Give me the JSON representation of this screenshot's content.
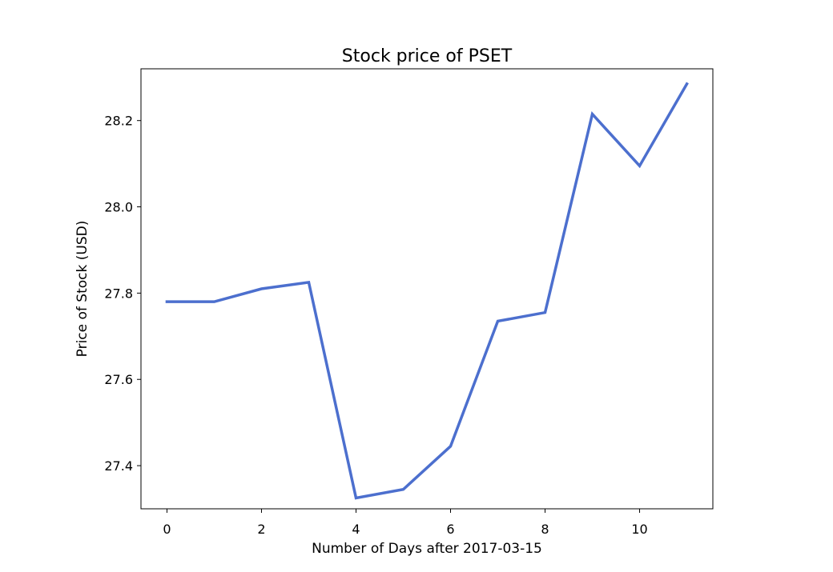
{
  "chart_data": {
    "type": "line",
    "title": "Stock price of PSET",
    "xlabel": "Number of Days after 2017-03-15",
    "ylabel": "Price of Stock (USD)",
    "xlim": [
      -0.55,
      11.55
    ],
    "ylim": [
      27.3,
      28.32
    ],
    "x_ticks": [
      0,
      2,
      4,
      6,
      8,
      10
    ],
    "x_tick_labels": [
      "0",
      "2",
      "4",
      "6",
      "8",
      "10"
    ],
    "y_ticks": [
      27.4,
      27.6,
      27.8,
      28.0,
      28.2
    ],
    "y_tick_labels": [
      "27.4",
      "27.6",
      "27.8",
      "28.0",
      "28.2"
    ],
    "grid": false,
    "series": [
      {
        "color": "#4c6fce",
        "x": [
          0,
          1,
          2,
          3,
          4,
          5,
          6,
          7,
          8,
          9,
          10,
          11
        ],
        "y": [
          27.78,
          27.78,
          27.81,
          27.825,
          27.325,
          27.345,
          27.445,
          27.735,
          27.755,
          28.215,
          28.095,
          28.285
        ]
      }
    ]
  }
}
